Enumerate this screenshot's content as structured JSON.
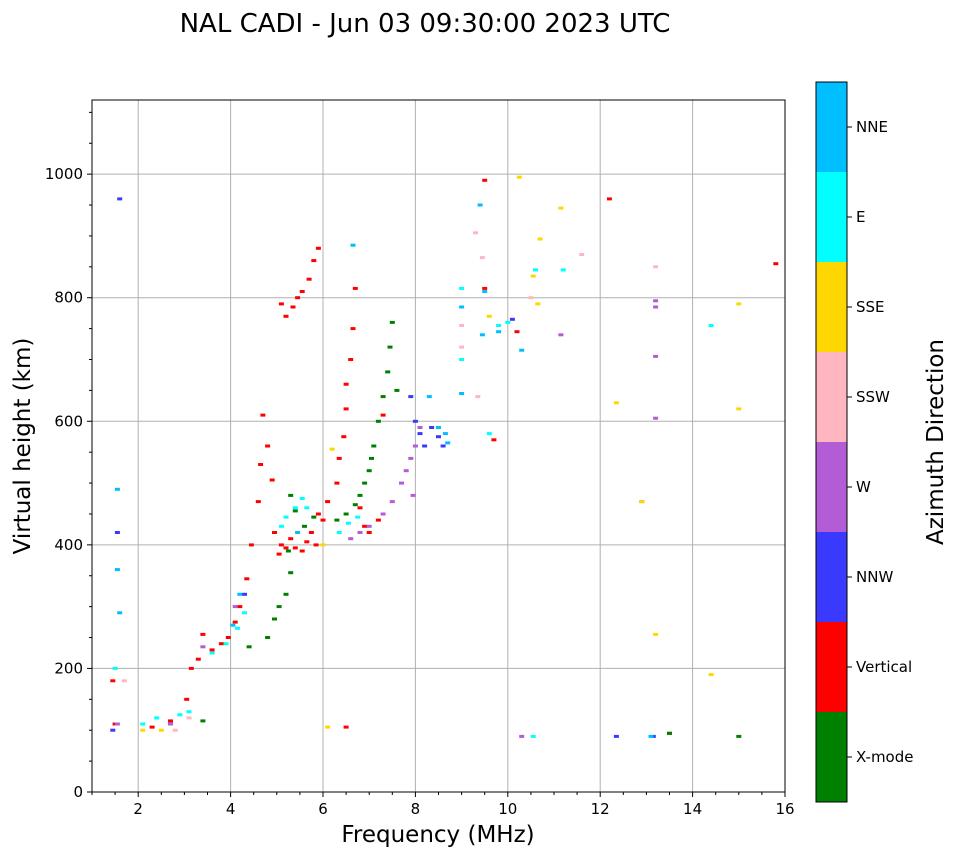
{
  "chart_data": {
    "type": "scatter",
    "title": "NAL CADI - Jun 03 09:30:00 2023 UTC",
    "xlabel": "Frequency (MHz)",
    "ylabel": "Virtual height (km)",
    "xlim": [
      1,
      16
    ],
    "ylim": [
      0,
      1120
    ],
    "xticks": [
      2,
      4,
      6,
      8,
      10,
      12,
      14,
      16
    ],
    "yticks": [
      0,
      200,
      400,
      600,
      800,
      1000
    ],
    "grid": true,
    "colorbar": {
      "label": "Azimuth Direction",
      "categories": [
        {
          "name": "X-mode",
          "color": "#008000"
        },
        {
          "name": "Vertical",
          "color": "#ff0000"
        },
        {
          "name": "NNW",
          "color": "#3a3aff"
        },
        {
          "name": "W",
          "color": "#b45bd6"
        },
        {
          "name": "SSW",
          "color": "#ffb6c1"
        },
        {
          "name": "SSE",
          "color": "#ffd700"
        },
        {
          "name": "E",
          "color": "#00ffff"
        },
        {
          "name": "NNE",
          "color": "#00bfff"
        }
      ]
    },
    "series": [
      {
        "name": "Vertical",
        "points": [
          [
            1.45,
            180
          ],
          [
            1.5,
            110
          ],
          [
            2.3,
            105
          ],
          [
            2.7,
            115
          ],
          [
            3.05,
            150
          ],
          [
            3.15,
            200
          ],
          [
            3.3,
            215
          ],
          [
            3.4,
            255
          ],
          [
            3.6,
            230
          ],
          [
            3.8,
            240
          ],
          [
            3.95,
            250
          ],
          [
            4.1,
            275
          ],
          [
            4.2,
            300
          ],
          [
            4.35,
            345
          ],
          [
            4.45,
            400
          ],
          [
            4.6,
            470
          ],
          [
            4.65,
            530
          ],
          [
            4.7,
            610
          ],
          [
            4.8,
            560
          ],
          [
            4.9,
            505
          ],
          [
            4.95,
            420
          ],
          [
            5.05,
            385
          ],
          [
            5.1,
            400
          ],
          [
            5.2,
            395
          ],
          [
            5.3,
            410
          ],
          [
            5.4,
            395
          ],
          [
            5.55,
            390
          ],
          [
            5.65,
            405
          ],
          [
            5.75,
            420
          ],
          [
            5.85,
            400
          ],
          [
            5.9,
            450
          ],
          [
            6.0,
            440
          ],
          [
            6.1,
            470
          ],
          [
            6.3,
            500
          ],
          [
            6.35,
            540
          ],
          [
            6.45,
            575
          ],
          [
            6.5,
            620
          ],
          [
            6.5,
            660
          ],
          [
            6.6,
            700
          ],
          [
            6.65,
            750
          ],
          [
            6.7,
            815
          ],
          [
            6.8,
            460
          ],
          [
            6.9,
            430
          ],
          [
            7.0,
            420
          ],
          [
            7.2,
            440
          ],
          [
            7.3,
            610
          ],
          [
            5.1,
            790
          ],
          [
            5.2,
            770
          ],
          [
            5.35,
            785
          ],
          [
            5.45,
            800
          ],
          [
            5.55,
            810
          ],
          [
            5.7,
            830
          ],
          [
            5.8,
            860
          ],
          [
            5.9,
            880
          ],
          [
            6.5,
            105
          ],
          [
            9.5,
            990
          ],
          [
            12.2,
            960
          ],
          [
            15.8,
            855
          ],
          [
            9.5,
            815
          ],
          [
            9.7,
            570
          ],
          [
            10.2,
            745
          ],
          [
            13.5,
            95
          ]
        ]
      },
      {
        "name": "X-mode",
        "points": [
          [
            3.4,
            115
          ],
          [
            4.4,
            235
          ],
          [
            4.8,
            250
          ],
          [
            4.95,
            280
          ],
          [
            5.05,
            300
          ],
          [
            5.2,
            320
          ],
          [
            5.3,
            355
          ],
          [
            5.25,
            390
          ],
          [
            5.3,
            480
          ],
          [
            5.4,
            455
          ],
          [
            5.6,
            430
          ],
          [
            5.8,
            445
          ],
          [
            6.3,
            440
          ],
          [
            6.5,
            450
          ],
          [
            6.7,
            465
          ],
          [
            6.8,
            480
          ],
          [
            6.9,
            500
          ],
          [
            7.0,
            520
          ],
          [
            7.05,
            540
          ],
          [
            7.1,
            560
          ],
          [
            7.2,
            600
          ],
          [
            7.3,
            640
          ],
          [
            7.4,
            680
          ],
          [
            7.45,
            720
          ],
          [
            7.5,
            760
          ],
          [
            7.6,
            650
          ],
          [
            13.5,
            95
          ],
          [
            15.0,
            90
          ]
        ]
      },
      {
        "name": "NNW",
        "points": [
          [
            1.45,
            100
          ],
          [
            1.6,
            960
          ],
          [
            1.55,
            420
          ],
          [
            4.3,
            320
          ],
          [
            7.9,
            640
          ],
          [
            8.0,
            600
          ],
          [
            8.1,
            580
          ],
          [
            8.2,
            560
          ],
          [
            8.35,
            590
          ],
          [
            8.5,
            575
          ],
          [
            8.6,
            560
          ],
          [
            10.1,
            765
          ],
          [
            12.35,
            90
          ],
          [
            13.15,
            90
          ]
        ]
      },
      {
        "name": "W",
        "points": [
          [
            1.55,
            110
          ],
          [
            2.7,
            110
          ],
          [
            3.4,
            235
          ],
          [
            4.1,
            300
          ],
          [
            6.6,
            410
          ],
          [
            6.8,
            420
          ],
          [
            7.0,
            430
          ],
          [
            7.3,
            450
          ],
          [
            7.5,
            470
          ],
          [
            7.7,
            500
          ],
          [
            7.8,
            520
          ],
          [
            7.9,
            540
          ],
          [
            8.0,
            560
          ],
          [
            8.1,
            590
          ],
          [
            7.95,
            480
          ],
          [
            12.9,
            470
          ],
          [
            13.2,
            605
          ],
          [
            13.2,
            705
          ],
          [
            13.2,
            785
          ],
          [
            13.2,
            795
          ],
          [
            10.3,
            90
          ],
          [
            11.15,
            740
          ]
        ]
      },
      {
        "name": "SSW",
        "points": [
          [
            1.7,
            180
          ],
          [
            2.8,
            100
          ],
          [
            3.1,
            120
          ],
          [
            9.3,
            905
          ],
          [
            9.45,
            865
          ],
          [
            9.0,
            755
          ],
          [
            9.0,
            720
          ],
          [
            9.35,
            640
          ],
          [
            10.5,
            800
          ],
          [
            11.6,
            870
          ],
          [
            13.2,
            850
          ]
        ]
      },
      {
        "name": "SSE",
        "points": [
          [
            2.1,
            100
          ],
          [
            2.5,
            100
          ],
          [
            6.0,
            400
          ],
          [
            6.2,
            555
          ],
          [
            9.6,
            770
          ],
          [
            10.25,
            995
          ],
          [
            10.55,
            835
          ],
          [
            10.7,
            895
          ],
          [
            10.65,
            790
          ],
          [
            11.15,
            945
          ],
          [
            12.35,
            630
          ],
          [
            12.9,
            470
          ],
          [
            13.2,
            255
          ],
          [
            14.4,
            190
          ],
          [
            15.0,
            790
          ],
          [
            15.0,
            620
          ],
          [
            6.1,
            105
          ]
        ]
      },
      {
        "name": "E",
        "points": [
          [
            1.5,
            200
          ],
          [
            2.1,
            110
          ],
          [
            2.4,
            120
          ],
          [
            2.9,
            125
          ],
          [
            3.1,
            130
          ],
          [
            3.6,
            225
          ],
          [
            3.9,
            240
          ],
          [
            4.15,
            265
          ],
          [
            4.3,
            290
          ],
          [
            5.1,
            430
          ],
          [
            5.2,
            445
          ],
          [
            5.4,
            460
          ],
          [
            5.55,
            475
          ],
          [
            5.65,
            460
          ],
          [
            6.35,
            420
          ],
          [
            6.55,
            435
          ],
          [
            6.75,
            445
          ],
          [
            9.0,
            815
          ],
          [
            9.0,
            700
          ],
          [
            9.6,
            580
          ],
          [
            9.8,
            755
          ],
          [
            10.0,
            760
          ],
          [
            10.6,
            845
          ],
          [
            11.2,
            845
          ],
          [
            14.4,
            755
          ],
          [
            10.55,
            90
          ]
        ]
      },
      {
        "name": "NNE",
        "points": [
          [
            1.55,
            490
          ],
          [
            1.55,
            360
          ],
          [
            1.6,
            290
          ],
          [
            4.05,
            270
          ],
          [
            4.2,
            320
          ],
          [
            5.45,
            420
          ],
          [
            6.65,
            885
          ],
          [
            8.3,
            640
          ],
          [
            8.5,
            590
          ],
          [
            8.7,
            565
          ],
          [
            9.0,
            785
          ],
          [
            9.0,
            645
          ],
          [
            9.4,
            950
          ],
          [
            9.45,
            740
          ],
          [
            9.5,
            810
          ],
          [
            9.8,
            745
          ],
          [
            10.3,
            715
          ],
          [
            8.65,
            580
          ],
          [
            13.1,
            90
          ]
        ]
      }
    ]
  }
}
